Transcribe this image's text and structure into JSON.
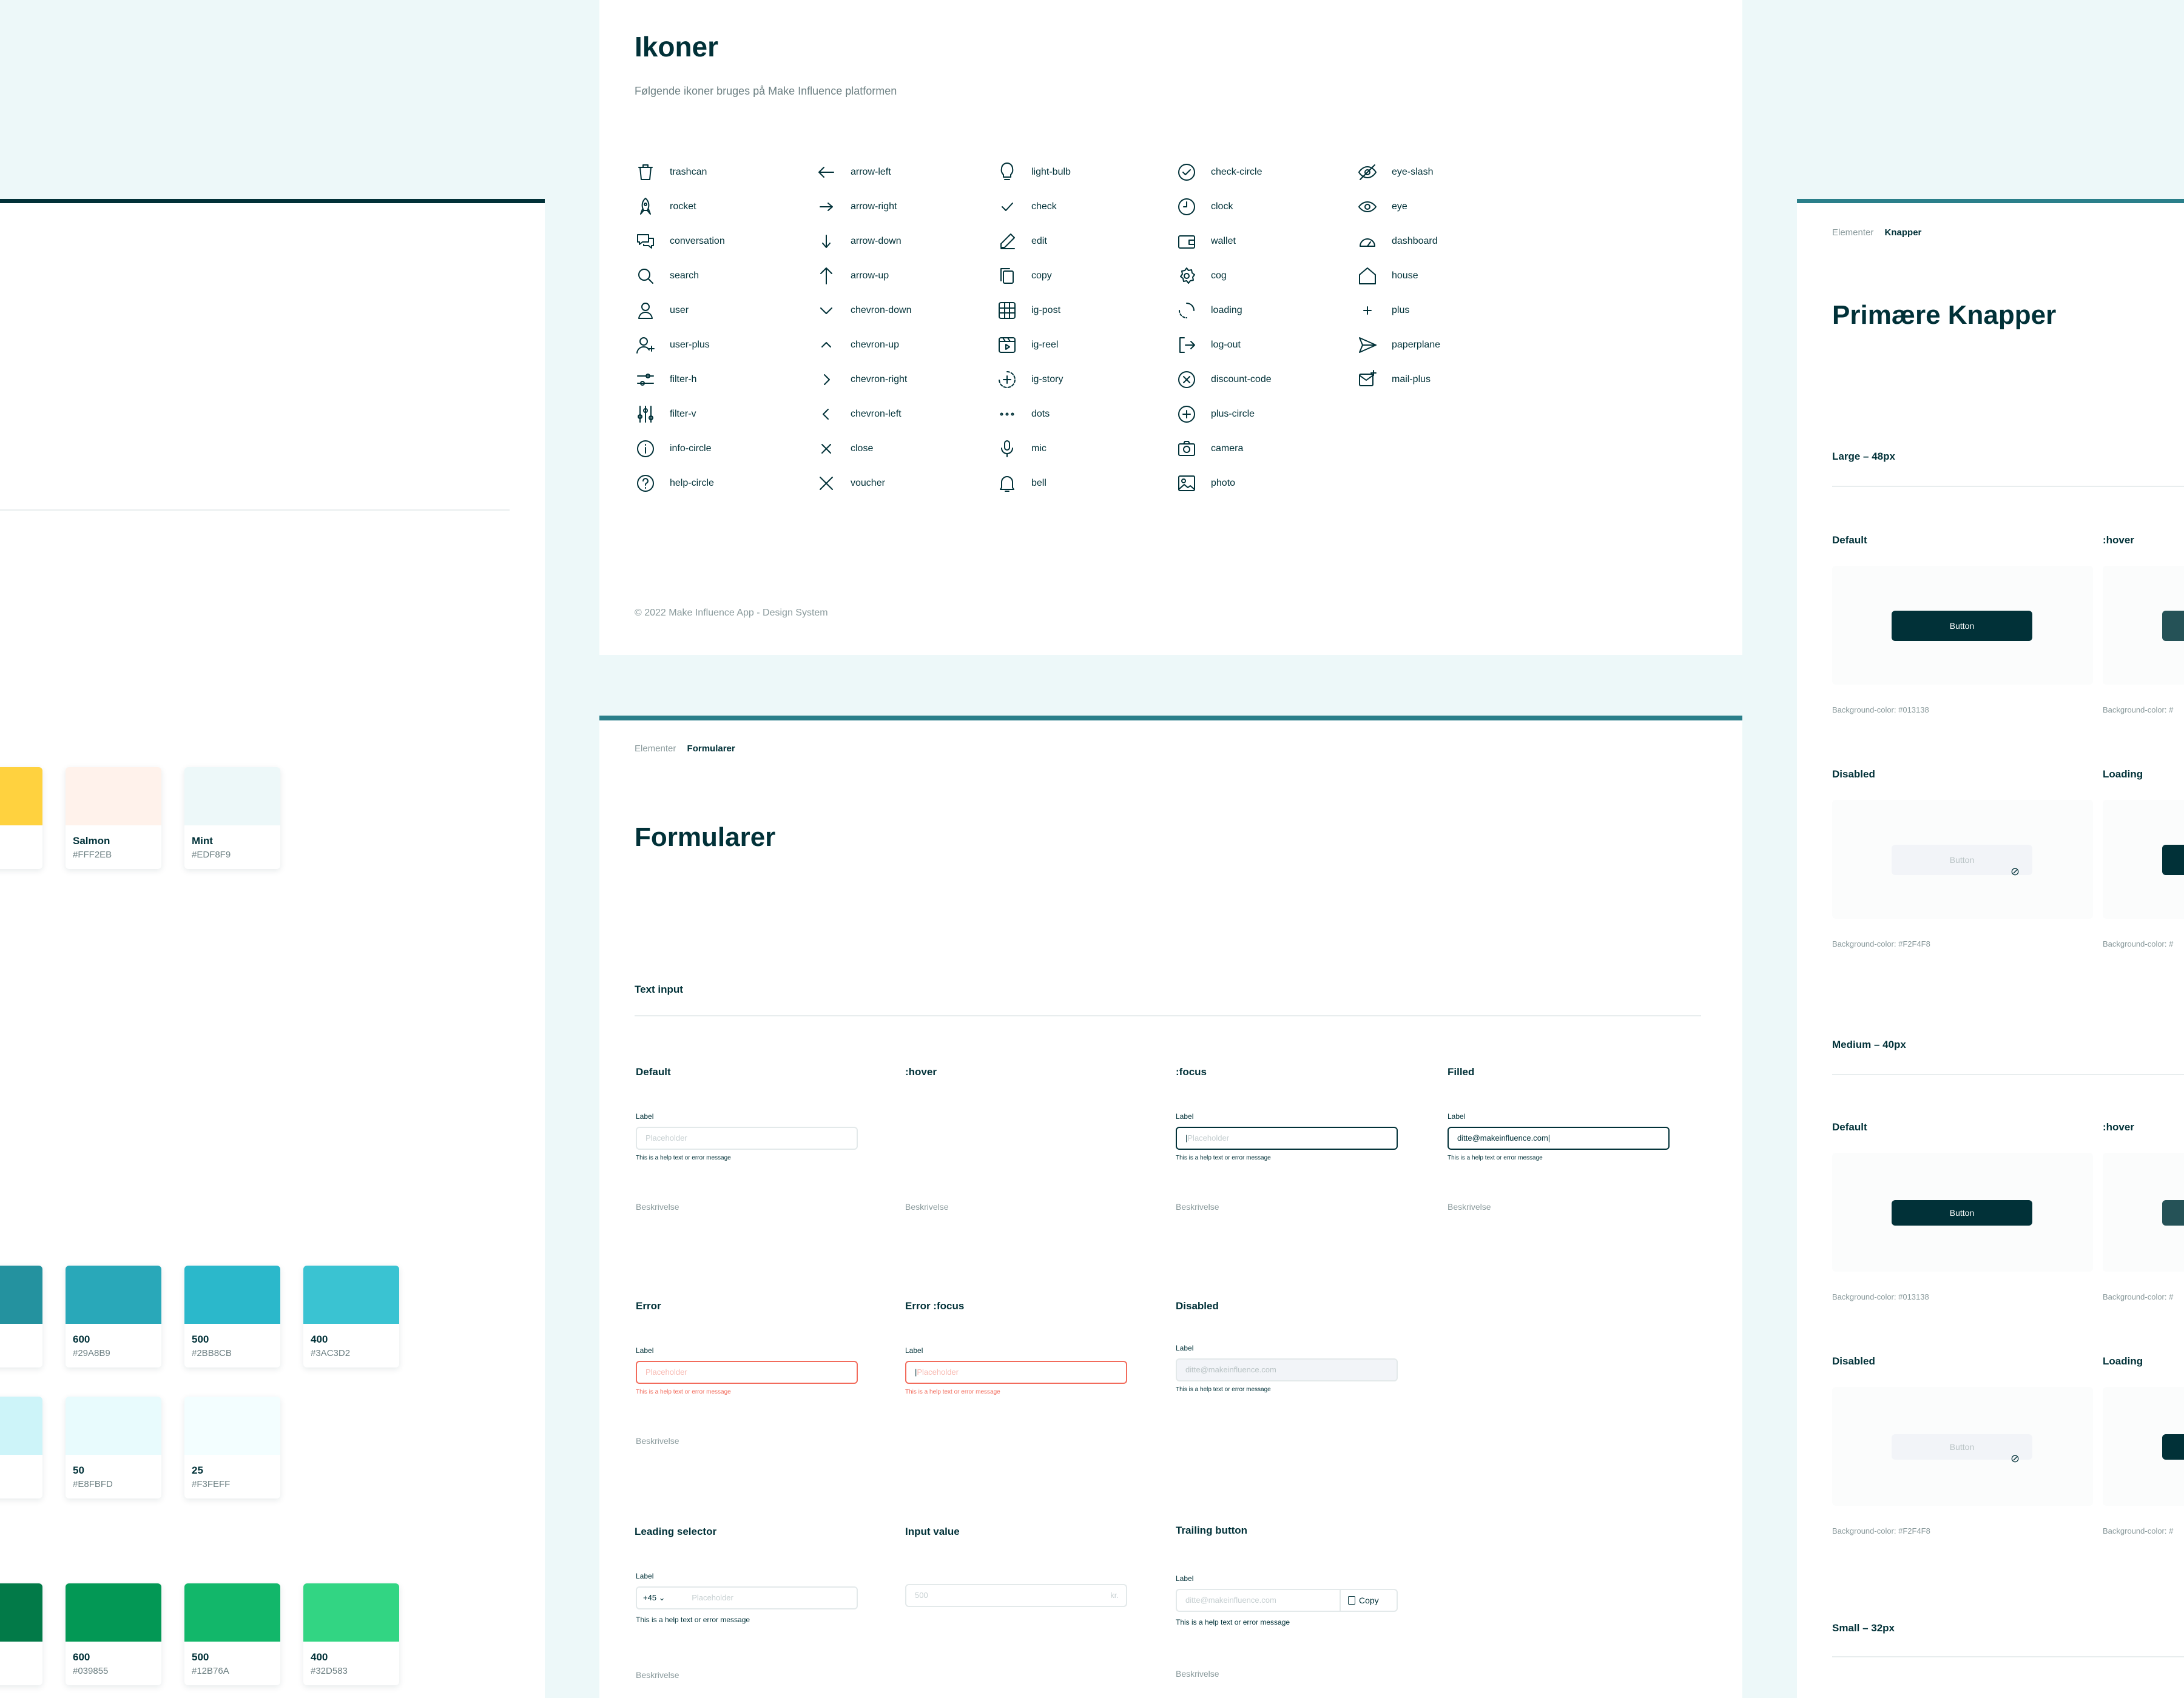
{
  "icons_panel": {
    "title": "Ikoner",
    "subtitle": "Følgende ikoner bruges på Make Influence platformen",
    "footer": "© 2022 Make Influence App - Design System",
    "columns": [
      [
        "trashcan",
        "rocket",
        "conversation",
        "search",
        "user",
        "user-plus",
        "filter-h",
        "filter-v",
        "info-circle",
        "help-circle"
      ],
      [
        "arrow-left",
        "arrow-right",
        "arrow-down",
        "arrow-up",
        "chevron-down",
        "chevron-up",
        "chevron-right",
        "chevron-left",
        "close",
        "voucher"
      ],
      [
        "light-bulb",
        "check",
        "edit",
        "copy",
        "ig-post",
        "ig-reel",
        "ig-story",
        "dots",
        "mic",
        "bell"
      ],
      [
        "check-circle",
        "clock",
        "wallet",
        "cog",
        "loading",
        "log-out",
        "discount-code",
        "plus-circle",
        "camera",
        "photo"
      ],
      [
        "eye-slash",
        "eye",
        "dashboard",
        "house",
        "plus",
        "paperplane",
        "mail-plus"
      ]
    ]
  },
  "colors_panel": {
    "swatches": [
      {
        "name": "Salmon",
        "hex": "#FFF2EB",
        "color": "#FFF2EB"
      },
      {
        "name": "Mint",
        "hex": "#EDF8F9",
        "color": "#EDF8F9"
      },
      {
        "name": "600",
        "hex": "#29A8B9",
        "color": "#29A8B9"
      },
      {
        "name": "500",
        "hex": "#2BB8CB",
        "color": "#2BB8CB"
      },
      {
        "name": "400",
        "hex": "#3AC3D2",
        "color": "#3AC3D2"
      },
      {
        "name": "50",
        "hex": "#E8FBFD",
        "color": "#E8FBFD"
      },
      {
        "name": "25",
        "hex": "#F3FEFF",
        "color": "#F3FEFF"
      },
      {
        "name": "600",
        "hex": "#039855",
        "color": "#039855"
      },
      {
        "name": "500",
        "hex": "#12B76A",
        "color": "#12B76A"
      },
      {
        "name": "400",
        "hex": "#32D583",
        "color": "#32D583"
      }
    ],
    "partial_colors": [
      "#FFD23F",
      "#24929F",
      "#CDF4F9",
      "#027A48"
    ]
  },
  "forms_panel": {
    "breadcrumb": {
      "parent": "Elementer",
      "current": "Formularer"
    },
    "title": "Formularer",
    "section": "Text input",
    "label": "Label",
    "placeholder": "Placeholder",
    "help": "This is a help text or error message",
    "desc": "Beskrivelse",
    "states": {
      "default": "Default",
      "hover": ":hover",
      "focus": ":focus",
      "filled": "Filled",
      "error": "Error",
      "error_focus": "Error :focus",
      "disabled": "Disabled",
      "leading": "Leading selector",
      "input_value": "Input value",
      "trailing": "Trailing button"
    },
    "filled_value": "ditte@makeinfluence.com",
    "disabled_value": "ditte@makeinfluence.com",
    "leading_prefix": "+45",
    "input_value_text": "500",
    "input_value_unit": "kr.",
    "trailing_placeholder": "ditte@makeinfluence.com",
    "copy_label": "Copy"
  },
  "buttons_panel": {
    "breadcrumb": {
      "parent": "Elementer",
      "current": "Knapper"
    },
    "title": "Primære Knapper",
    "sizes": {
      "large": "Large – 48px",
      "medium": "Medium – 40px",
      "small": "Small – 32px"
    },
    "states": {
      "default": "Default",
      "hover": ":hover",
      "disabled": "Disabled",
      "loading": "Loading"
    },
    "button_label": "Button",
    "bg_primary": "Background-color: #013138",
    "bg_disabled": "Background-color: #F2F4F8",
    "bg_truncated": "Background-color: #"
  },
  "colors": {
    "primary": "#013138",
    "accent": "#2A7F8A",
    "error": "#F26B5B",
    "mint": "#EDF8F9"
  }
}
